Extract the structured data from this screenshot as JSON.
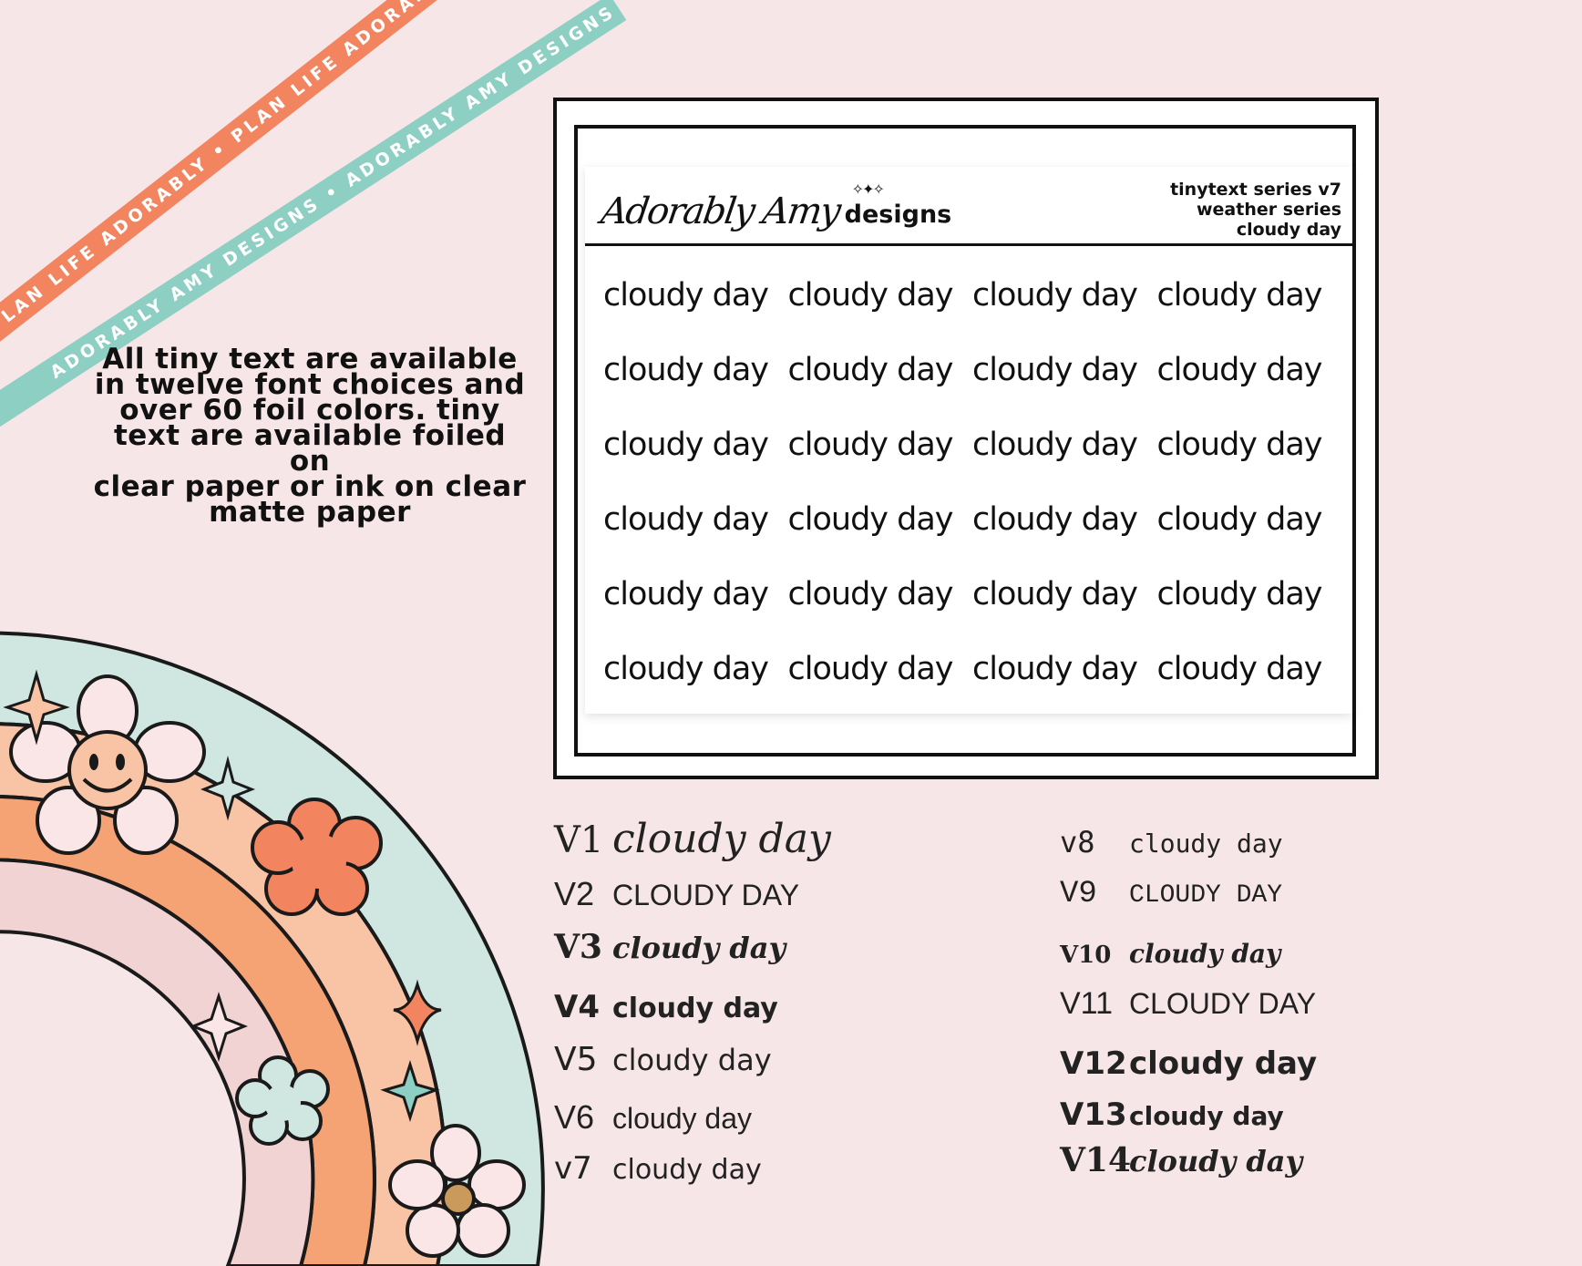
{
  "ribbons": {
    "orange_text": "PLAN LIFE ADORABLY • PLAN LIFE ADORABLY • PLAN LIFE ADORABLY",
    "teal_text": "ADORABLY AMY DESIGNS • ADORABLY AMY DESIGNS • ADORABLY AMY DESIGNS"
  },
  "description": {
    "line1": "All tiny text are available",
    "line2": "in twelve font choices and",
    "line3": "over 60 foil colors.  tiny",
    "line4": "text are available foiled on",
    "line5": "clear paper or ink on clear",
    "line6": "matte paper"
  },
  "sheet": {
    "brand_script": "Adorably Amy",
    "brand_word": "designs",
    "meta_line1": "tinytext series v7",
    "meta_line2": "weather series",
    "meta_line3": "cloudy day",
    "sticker_text": "cloudy day"
  },
  "variants_left": [
    {
      "label": "V1",
      "text": "cloudy day"
    },
    {
      "label": "V2",
      "text": "CLOUDY DAY"
    },
    {
      "label": "V3",
      "text": "cloudy day"
    },
    {
      "label": "V4",
      "text": "cloudy day"
    },
    {
      "label": "V5",
      "text": "cloudy day"
    },
    {
      "label": "V6",
      "text": "cloudy day"
    },
    {
      "label": "v7",
      "text": "cloudy day"
    }
  ],
  "variants_right": [
    {
      "label": "v8",
      "text": "cloudy day"
    },
    {
      "label": "V9",
      "text": "CLOUDY DAY"
    },
    {
      "label": "V10",
      "text": "cloudy day"
    },
    {
      "label": "V11",
      "text": "CLOUDY DAY"
    },
    {
      "label": "V12",
      "text": "cloudy day"
    },
    {
      "label": "V13",
      "text": "cloudy day"
    },
    {
      "label": "V14",
      "text": "cloudy day"
    }
  ],
  "colors": {
    "background": "#f7e6e7",
    "rainbow_teal": "#cfe6e1",
    "rainbow_peach": "#f9c3a6",
    "rainbow_orange": "#f5a274",
    "rainbow_pink": "#f2d3d3",
    "flower_coral": "#f2845f",
    "ribbon_orange": "#f2845f",
    "ribbon_teal": "#8ecfc3"
  }
}
